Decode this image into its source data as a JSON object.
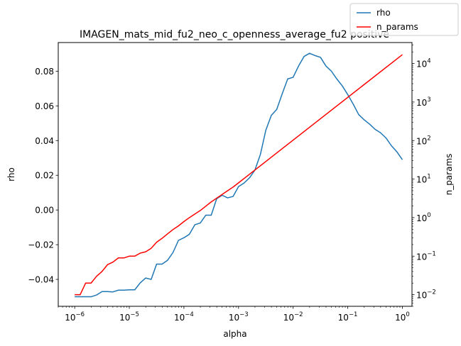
{
  "chart_data": {
    "type": "line",
    "title": "IMAGEN_mats_mid_fu2_neo_c_openness_average_fu2 positive",
    "xlabel": "alpha",
    "ylabel": "rho",
    "ylabel_right": "n_params",
    "xscale": "log",
    "xlim": [
      5e-07,
      1.5
    ],
    "ylim": [
      -0.0555,
      0.0965
    ],
    "y2scale": "log",
    "y2lim": [
      0.005,
      35000
    ],
    "x_ticks": [
      "10^-6",
      "10^-5",
      "10^-4",
      "10^-3",
      "10^-2",
      "10^-1",
      "10^0"
    ],
    "y_ticks": [
      "−0.04",
      "−0.02",
      "0.00",
      "0.02",
      "0.04",
      "0.06",
      "0.08"
    ],
    "y2_ticks": [
      "10^-2",
      "10^-1",
      "10^0",
      "10^1",
      "10^2",
      "10^3",
      "10^4"
    ],
    "legend": {
      "position": "top-right",
      "entries": [
        "rho",
        "n_params"
      ]
    },
    "grid": false,
    "series": [
      {
        "name": "rho",
        "axis": "left",
        "color": "#1f77b4",
        "x": [
          1e-06,
          1.259e-06,
          1.585e-06,
          1.995e-06,
          2.512e-06,
          3.162e-06,
          3.981e-06,
          5.012e-06,
          6.31e-06,
          7.943e-06,
          1e-05,
          1.259e-05,
          1.585e-05,
          1.995e-05,
          2.512e-05,
          3.162e-05,
          3.981e-05,
          5.012e-05,
          6.31e-05,
          7.943e-05,
          0.0001,
          0.0001259,
          0.0001585,
          0.0001995,
          0.0002512,
          0.0003162,
          0.0003981,
          0.0005012,
          0.000631,
          0.0007943,
          0.001,
          0.001259,
          0.001585,
          0.001995,
          0.002512,
          0.003162,
          0.003981,
          0.005012,
          0.00631,
          0.007943,
          0.01,
          0.01259,
          0.01585,
          0.01995,
          0.02512,
          0.03162,
          0.03981,
          0.05012,
          0.0631,
          0.07943,
          0.1,
          0.1259,
          0.1585,
          0.1995,
          0.2512,
          0.3162,
          0.3981,
          0.5012,
          0.631,
          0.7943,
          1.0
        ],
        "values": [
          -0.05,
          -0.05,
          -0.05,
          -0.05,
          -0.049,
          -0.047,
          -0.047,
          -0.0472,
          -0.0462,
          -0.0462,
          -0.046,
          -0.046,
          -0.042,
          -0.0392,
          -0.04,
          -0.0312,
          -0.0312,
          -0.029,
          -0.0245,
          -0.0175,
          -0.016,
          -0.014,
          -0.0085,
          -0.0075,
          -0.003,
          -0.003,
          0.0065,
          0.0085,
          0.007,
          0.0078,
          0.0135,
          0.0155,
          0.0185,
          0.023,
          0.032,
          0.046,
          0.0545,
          0.058,
          0.067,
          0.0755,
          0.0765,
          0.083,
          0.0885,
          0.0903,
          0.089,
          0.088,
          0.083,
          0.08,
          0.0755,
          0.0715,
          0.0665,
          0.061,
          0.055,
          0.052,
          0.0495,
          0.0465,
          0.0445,
          0.0415,
          0.037,
          0.0335,
          0.029
        ]
      },
      {
        "name": "n_params",
        "axis": "right",
        "color": "#ff0000",
        "x": [
          1e-06,
          1.259e-06,
          1.585e-06,
          1.995e-06,
          2.512e-06,
          3.162e-06,
          3.981e-06,
          5.012e-06,
          6.31e-06,
          7.943e-06,
          1e-05,
          1.259e-05,
          1.585e-05,
          1.995e-05,
          2.512e-05,
          3.162e-05,
          3.981e-05,
          5.012e-05,
          6.31e-05,
          7.943e-05,
          0.0001,
          0.0001259,
          0.0001585,
          0.0001995,
          0.0002512,
          0.0003162,
          0.0003981,
          0.0005012,
          0.000631,
          0.0007943,
          0.001,
          1.0
        ],
        "values": [
          0.01,
          0.01,
          0.02,
          0.02,
          0.03,
          0.04,
          0.06,
          0.07,
          0.09,
          0.09,
          0.1,
          0.1,
          0.12,
          0.13,
          0.16,
          0.23,
          0.29,
          0.38,
          0.49,
          0.61,
          0.79,
          1.0,
          1.24,
          1.53,
          1.98,
          2.56,
          3.2,
          4.0,
          5.0,
          6.2,
          8.0,
          17000
        ]
      }
    ]
  }
}
